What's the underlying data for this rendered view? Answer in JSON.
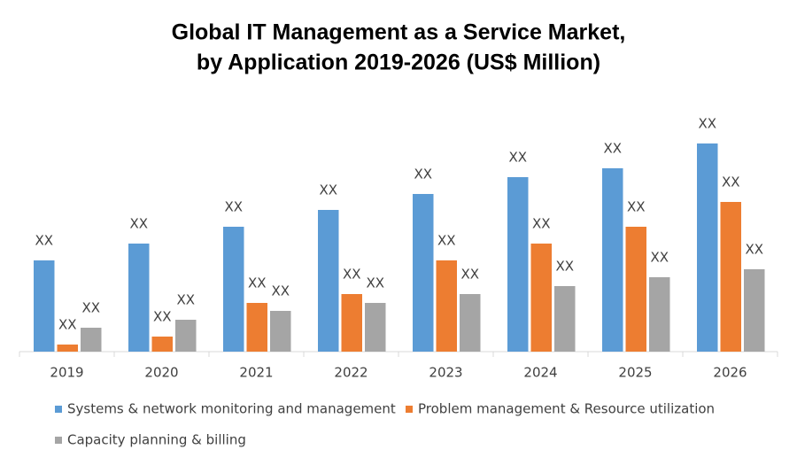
{
  "chart_data": {
    "type": "bar",
    "title": "Global IT Management as a Service Market,",
    "subtitle": "by Application 2019-2026 (US$ Million)",
    "categories": [
      "2019",
      "2020",
      "2021",
      "2022",
      "2023",
      "2024",
      "2025",
      "2026"
    ],
    "series": [
      {
        "name": "Systems & network monitoring and management",
        "color": "#5b9bd5",
        "values": [
          103,
          122,
          141,
          160,
          178,
          197,
          207,
          235
        ],
        "value_labels": [
          "XX",
          "XX",
          "XX",
          "XX",
          "XX",
          "XX",
          "XX",
          "XX"
        ]
      },
      {
        "name": "Problem management & Resource utilization",
        "color": "#ed7d31",
        "values": [
          8,
          17,
          55,
          65,
          103,
          122,
          141,
          169
        ],
        "value_labels": [
          "XX",
          "XX",
          "XX",
          "XX",
          "XX",
          "XX",
          "XX",
          "XX"
        ]
      },
      {
        "name": "Capacity planning & billing",
        "color": "#a5a5a5",
        "values": [
          27,
          36,
          46,
          55,
          65,
          74,
          84,
          93
        ],
        "value_labels": [
          "XX",
          "XX",
          "XX",
          "XX",
          "XX",
          "XX",
          "XX",
          "XX"
        ]
      }
    ]
  }
}
